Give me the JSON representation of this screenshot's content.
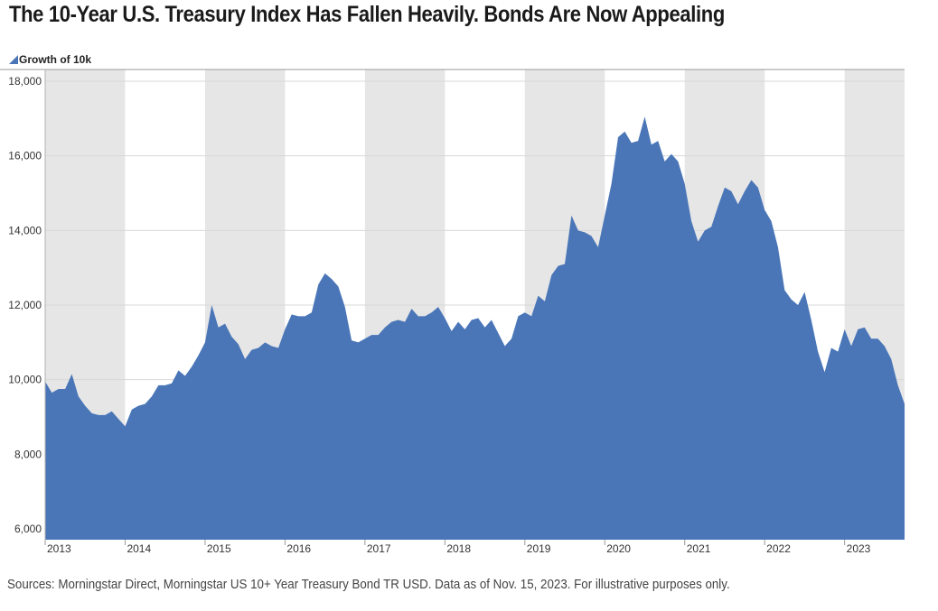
{
  "title": "The 10-Year U.S. Treasury Index Has Fallen Heavily. Bonds Are Now Appealing",
  "footer": "Sources: Morningstar Direct, Morningstar US 10+ Year Treasury Bond TR USD. Data as of Nov. 15, 2023. For illustrative purposes only.",
  "colors": {
    "area": "#4a76b8",
    "band": "#e6e6e6",
    "grid": "#d8d8d8"
  },
  "chart_data": {
    "type": "area",
    "title": "The 10-Year U.S. Treasury Index Has Fallen Heavily. Bonds Are Now Appealing",
    "legend": "Growth of 10k",
    "legend_placement": "top-left",
    "x_range": [
      "2013-01",
      "2023-10"
    ],
    "ylim": [
      5800,
      18000
    ],
    "y_ticks": [
      6000,
      8000,
      10000,
      12000,
      14000,
      16000,
      18000
    ],
    "y_tick_labels": [
      "6,000",
      "8,000",
      "10,000",
      "12,000",
      "14,000",
      "16,000",
      "18,000"
    ],
    "x_ticks": [
      "2013",
      "2014",
      "2015",
      "2016",
      "2017",
      "2018",
      "2019",
      "2020",
      "2021",
      "2022",
      "2023"
    ],
    "shaded_years": [
      "2013",
      "2015",
      "2017",
      "2019",
      "2021",
      "2023"
    ],
    "grid": true,
    "series": [
      {
        "name": "Growth of 10k",
        "points": [
          [
            "2013-01",
            9950
          ],
          [
            "2013-02",
            9650
          ],
          [
            "2013-03",
            9750
          ],
          [
            "2013-04",
            9750
          ],
          [
            "2013-05",
            10150
          ],
          [
            "2013-06",
            9550
          ],
          [
            "2013-07",
            9300
          ],
          [
            "2013-08",
            9100
          ],
          [
            "2013-09",
            9050
          ],
          [
            "2013-10",
            9050
          ],
          [
            "2013-11",
            9150
          ],
          [
            "2013-12",
            8950
          ],
          [
            "2014-01",
            8750
          ],
          [
            "2014-02",
            9200
          ],
          [
            "2014-03",
            9300
          ],
          [
            "2014-04",
            9350
          ],
          [
            "2014-05",
            9550
          ],
          [
            "2014-06",
            9850
          ],
          [
            "2014-07",
            9850
          ],
          [
            "2014-08",
            9900
          ],
          [
            "2014-09",
            10250
          ],
          [
            "2014-10",
            10100
          ],
          [
            "2014-11",
            10350
          ],
          [
            "2014-12",
            10650
          ],
          [
            "2015-01",
            11000
          ],
          [
            "2015-02",
            12000
          ],
          [
            "2015-03",
            11400
          ],
          [
            "2015-04",
            11500
          ],
          [
            "2015-05",
            11150
          ],
          [
            "2015-06",
            10950
          ],
          [
            "2015-07",
            10550
          ],
          [
            "2015-08",
            10800
          ],
          [
            "2015-09",
            10850
          ],
          [
            "2015-10",
            11000
          ],
          [
            "2015-11",
            10900
          ],
          [
            "2015-12",
            10850
          ],
          [
            "2016-01",
            11350
          ],
          [
            "2016-02",
            11750
          ],
          [
            "2016-03",
            11700
          ],
          [
            "2016-04",
            11700
          ],
          [
            "2016-05",
            11800
          ],
          [
            "2016-06",
            12550
          ],
          [
            "2016-07",
            12850
          ],
          [
            "2016-08",
            12700
          ],
          [
            "2016-09",
            12500
          ],
          [
            "2016-10",
            11950
          ],
          [
            "2016-11",
            11050
          ],
          [
            "2016-12",
            11000
          ],
          [
            "2017-01",
            11100
          ],
          [
            "2017-02",
            11200
          ],
          [
            "2017-03",
            11200
          ],
          [
            "2017-04",
            11400
          ],
          [
            "2017-05",
            11550
          ],
          [
            "2017-06",
            11600
          ],
          [
            "2017-07",
            11550
          ],
          [
            "2017-08",
            11900
          ],
          [
            "2017-09",
            11700
          ],
          [
            "2017-10",
            11700
          ],
          [
            "2017-11",
            11800
          ],
          [
            "2017-12",
            11950
          ],
          [
            "2018-01",
            11650
          ],
          [
            "2018-02",
            11300
          ],
          [
            "2018-03",
            11550
          ],
          [
            "2018-04",
            11350
          ],
          [
            "2018-05",
            11600
          ],
          [
            "2018-06",
            11650
          ],
          [
            "2018-07",
            11400
          ],
          [
            "2018-08",
            11600
          ],
          [
            "2018-09",
            11250
          ],
          [
            "2018-10",
            10900
          ],
          [
            "2018-11",
            11100
          ],
          [
            "2018-12",
            11700
          ],
          [
            "2019-01",
            11800
          ],
          [
            "2019-02",
            11700
          ],
          [
            "2019-03",
            12250
          ],
          [
            "2019-04",
            12100
          ],
          [
            "2019-05",
            12800
          ],
          [
            "2019-06",
            13050
          ],
          [
            "2019-07",
            13100
          ],
          [
            "2019-08",
            14400
          ],
          [
            "2019-09",
            14000
          ],
          [
            "2019-10",
            13950
          ],
          [
            "2019-11",
            13850
          ],
          [
            "2019-12",
            13550
          ],
          [
            "2020-01",
            14400
          ],
          [
            "2020-02",
            15250
          ],
          [
            "2020-03",
            16500
          ],
          [
            "2020-04",
            16650
          ],
          [
            "2020-05",
            16350
          ],
          [
            "2020-06",
            16400
          ],
          [
            "2020-07",
            17050
          ],
          [
            "2020-08",
            16300
          ],
          [
            "2020-09",
            16400
          ],
          [
            "2020-10",
            15850
          ],
          [
            "2020-11",
            16050
          ],
          [
            "2020-12",
            15850
          ],
          [
            "2021-01",
            15250
          ],
          [
            "2021-02",
            14250
          ],
          [
            "2021-03",
            13700
          ],
          [
            "2021-04",
            14000
          ],
          [
            "2021-05",
            14100
          ],
          [
            "2021-06",
            14650
          ],
          [
            "2021-07",
            15150
          ],
          [
            "2021-08",
            15050
          ],
          [
            "2021-09",
            14700
          ],
          [
            "2021-10",
            15050
          ],
          [
            "2021-11",
            15350
          ],
          [
            "2021-12",
            15150
          ],
          [
            "2022-01",
            14550
          ],
          [
            "2022-02",
            14250
          ],
          [
            "2022-03",
            13550
          ],
          [
            "2022-04",
            12400
          ],
          [
            "2022-05",
            12150
          ],
          [
            "2022-06",
            12000
          ],
          [
            "2022-07",
            12350
          ],
          [
            "2022-08",
            11600
          ],
          [
            "2022-09",
            10750
          ],
          [
            "2022-10",
            10200
          ],
          [
            "2022-11",
            10850
          ],
          [
            "2022-12",
            10750
          ],
          [
            "2023-01",
            11350
          ],
          [
            "2023-02",
            10900
          ],
          [
            "2023-03",
            11350
          ],
          [
            "2023-04",
            11400
          ],
          [
            "2023-05",
            11100
          ],
          [
            "2023-06",
            11100
          ],
          [
            "2023-07",
            10900
          ],
          [
            "2023-08",
            10550
          ],
          [
            "2023-09",
            9850
          ],
          [
            "2023-10",
            9350
          ]
        ]
      }
    ]
  }
}
